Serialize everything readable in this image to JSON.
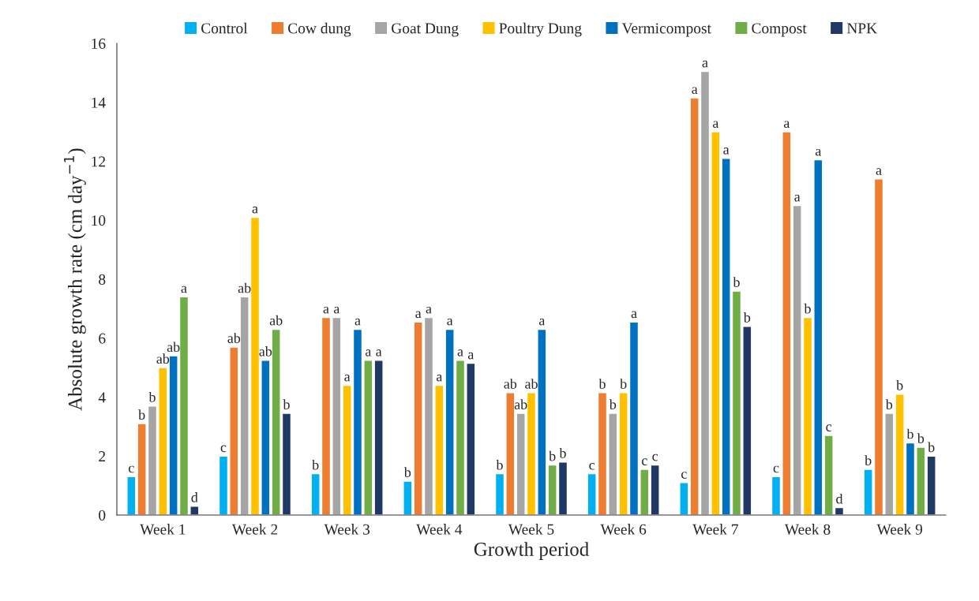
{
  "chart_data": {
    "type": "bar",
    "xlabel": "Growth period",
    "ylabel": "Absolute growth rate (cm day$^{−1}$)",
    "categories": [
      "Week 1",
      "Week 2",
      "Week 3",
      "Week 4",
      "Week 5",
      "Week 6",
      "Week 7",
      "Week 8",
      "Week 9"
    ],
    "ylim": [
      0,
      16
    ],
    "yticks": [
      0,
      2,
      4,
      6,
      8,
      10,
      12,
      14,
      16
    ],
    "grid": false,
    "legend": "top",
    "series": [
      {
        "name": "Control",
        "color": "#00b0f0",
        "values": [
          1.3,
          2.0,
          1.4,
          1.15,
          1.4,
          1.4,
          1.1,
          1.3,
          1.55
        ],
        "value_labels": [
          "c",
          "c",
          "b",
          "b",
          "b",
          "c",
          "c",
          "c",
          "b"
        ]
      },
      {
        "name": "Cow dung",
        "color": "#ed7d31",
        "values": [
          3.1,
          5.7,
          6.7,
          6.55,
          4.15,
          4.15,
          14.15,
          13.0,
          11.4
        ],
        "value_labels": [
          "b",
          "ab",
          "a",
          "a",
          "ab",
          "b",
          "a",
          "a",
          "a"
        ]
      },
      {
        "name": "Goat Dung",
        "color": "#a5a5a5",
        "values": [
          3.7,
          7.4,
          6.7,
          6.7,
          3.45,
          3.45,
          15.05,
          10.5,
          3.45
        ],
        "value_labels": [
          "b",
          "ab",
          "a",
          "a",
          "ab",
          "b",
          "a",
          "a",
          "b"
        ]
      },
      {
        "name": "Poultry Dung",
        "color": "#ffc000",
        "values": [
          5.0,
          10.1,
          4.4,
          4.4,
          4.15,
          4.15,
          13.0,
          6.7,
          4.1
        ],
        "value_labels": [
          "ab",
          "a",
          "a",
          "a",
          "ab",
          "b",
          "a",
          "b",
          "b"
        ]
      },
      {
        "name": "Vermicompost",
        "color": "#0070c0",
        "values": [
          5.4,
          5.25,
          6.3,
          6.3,
          6.3,
          6.55,
          12.1,
          12.05,
          2.45
        ],
        "value_labels": [
          "ab",
          "ab",
          "a",
          "a",
          "a",
          "a",
          "a",
          "a",
          "b"
        ]
      },
      {
        "name": "Compost",
        "color": "#70ad47",
        "values": [
          7.4,
          6.3,
          5.25,
          5.25,
          1.7,
          1.55,
          7.6,
          2.7,
          2.3
        ],
        "value_labels": [
          "a",
          "ab",
          "a",
          "a",
          "b",
          "c",
          "b",
          "c",
          "b"
        ]
      },
      {
        "name": "NPK",
        "color": "#203864",
        "values": [
          0.3,
          3.45,
          5.25,
          5.15,
          1.8,
          1.7,
          6.4,
          0.25,
          2.0
        ],
        "value_labels": [
          "d",
          "b",
          "a",
          "a",
          "b",
          "c",
          "b",
          "d",
          "b"
        ]
      }
    ]
  }
}
